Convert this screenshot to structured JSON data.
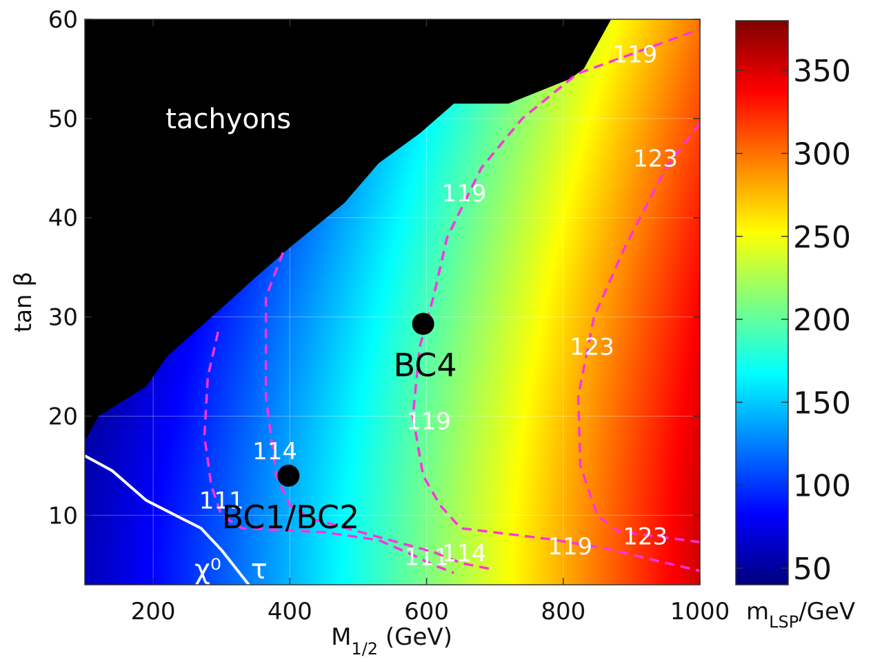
{
  "chart_data": {
    "type": "heatmap",
    "xlabel_main": "M",
    "xlabel_sub": "1/2",
    "xlabel_unit": " (GeV)",
    "ylabel": "tan β",
    "colorbar_label_main": "m",
    "colorbar_label_sub": "LSP",
    "colorbar_label_unit": "/GeV",
    "xlim": [
      100,
      1000
    ],
    "ylim": [
      3,
      60
    ],
    "x_ticks": [
      200,
      400,
      600,
      800,
      1000
    ],
    "y_ticks": [
      10,
      20,
      30,
      40,
      50,
      60
    ],
    "colorbar_range": [
      40,
      380
    ],
    "colorbar_ticks": [
      50,
      100,
      150,
      200,
      250,
      300,
      350
    ],
    "grid": true,
    "regions": [
      {
        "label": "tachyons",
        "color": "#000000",
        "label_at": [
          310,
          50
        ],
        "boundary": [
          [
            100,
            60
          ],
          [
            100,
            17.5
          ],
          [
            120,
            20
          ],
          [
            190,
            23
          ],
          [
            220,
            26
          ],
          [
            310,
            31.5
          ],
          [
            350,
            34
          ],
          [
            400,
            37
          ],
          [
            480,
            41.5
          ],
          [
            530,
            45.5
          ],
          [
            590,
            48.5
          ],
          [
            640,
            51.5
          ],
          [
            720,
            51.5
          ],
          [
            810,
            54
          ],
          [
            830,
            55
          ],
          [
            870,
            60
          ]
        ]
      }
    ],
    "boundary_lines": [
      {
        "label": "χ⁰",
        "label_at": [
          280,
          4.6
        ],
        "color": "#ffffff",
        "points": [
          [
            100,
            16
          ],
          [
            140,
            14.5
          ],
          [
            190,
            11.5
          ],
          [
            270,
            8.7
          ],
          [
            300,
            6.5
          ],
          [
            340,
            3
          ]
        ]
      },
      {
        "label": "τ",
        "label_at": [
          355,
          4.6
        ],
        "color": "#ffffff",
        "points": []
      }
    ],
    "higgs_contours": [
      {
        "label": "111",
        "color": "#ff33dd",
        "points": [
          [
            295,
            28.5
          ],
          [
            280,
            24
          ],
          [
            275,
            18
          ],
          [
            285,
            13
          ],
          [
            300,
            10
          ],
          [
            330,
            8.7
          ],
          [
            450,
            8.3
          ],
          [
            530,
            7.5
          ],
          [
            580,
            6
          ],
          [
            610,
            5
          ],
          [
            640,
            4.2
          ]
        ],
        "label_positions": [
          [
            300,
            11.5
          ],
          [
            600,
            5.8
          ]
        ]
      },
      {
        "label": "114",
        "color": "#ff33dd",
        "points": [
          [
            390,
            36.5
          ],
          [
            365,
            32
          ],
          [
            365,
            22
          ],
          [
            380,
            14
          ],
          [
            400,
            11
          ],
          [
            430,
            9.7
          ],
          [
            520,
            8
          ],
          [
            610,
            6.3
          ],
          [
            650,
            5.2
          ],
          [
            700,
            4.5
          ]
        ],
        "label_positions": [
          [
            378,
            16.5
          ],
          [
            655,
            6.2
          ]
        ]
      },
      {
        "label": "119",
        "color": "#ff33dd",
        "points": [
          [
            600,
            29.5
          ],
          [
            610,
            32
          ],
          [
            630,
            38
          ],
          [
            680,
            45
          ],
          [
            740,
            50
          ],
          [
            820,
            54.5
          ],
          [
            900,
            56.5
          ],
          [
            1000,
            59
          ]
        ],
        "label_positions": [
          [
            655,
            42.5
          ],
          [
            905,
            56.5
          ]
        ]
      },
      {
        "label": "119",
        "color": "#ff33dd",
        "points": [
          [
            600,
            29.5
          ],
          [
            590,
            27
          ],
          [
            580,
            20
          ],
          [
            595,
            14
          ],
          [
            620,
            11
          ],
          [
            650,
            8.7
          ],
          [
            780,
            7.6
          ],
          [
            860,
            6.7
          ],
          [
            920,
            5.7
          ],
          [
            1000,
            4.4
          ]
        ],
        "label_positions": [
          [
            603,
            19.5
          ],
          [
            810,
            6.9
          ]
        ]
      },
      {
        "label": "123",
        "color": "#ff33dd",
        "points": [
          [
            1000,
            49.5
          ],
          [
            950,
            45
          ],
          [
            890,
            37
          ],
          [
            845,
            30
          ],
          [
            822,
            22
          ],
          [
            825,
            15
          ],
          [
            850,
            10
          ],
          [
            880,
            8.4
          ],
          [
            1000,
            7.3
          ]
        ],
        "label_positions": [
          [
            935,
            46
          ],
          [
            842,
            27
          ],
          [
            920,
            7.9
          ]
        ]
      }
    ],
    "points": [
      {
        "label": "BC4",
        "x": 595,
        "y": 29.3
      },
      {
        "label": "BC1/BC2",
        "x": 398,
        "y": 14
      }
    ]
  }
}
